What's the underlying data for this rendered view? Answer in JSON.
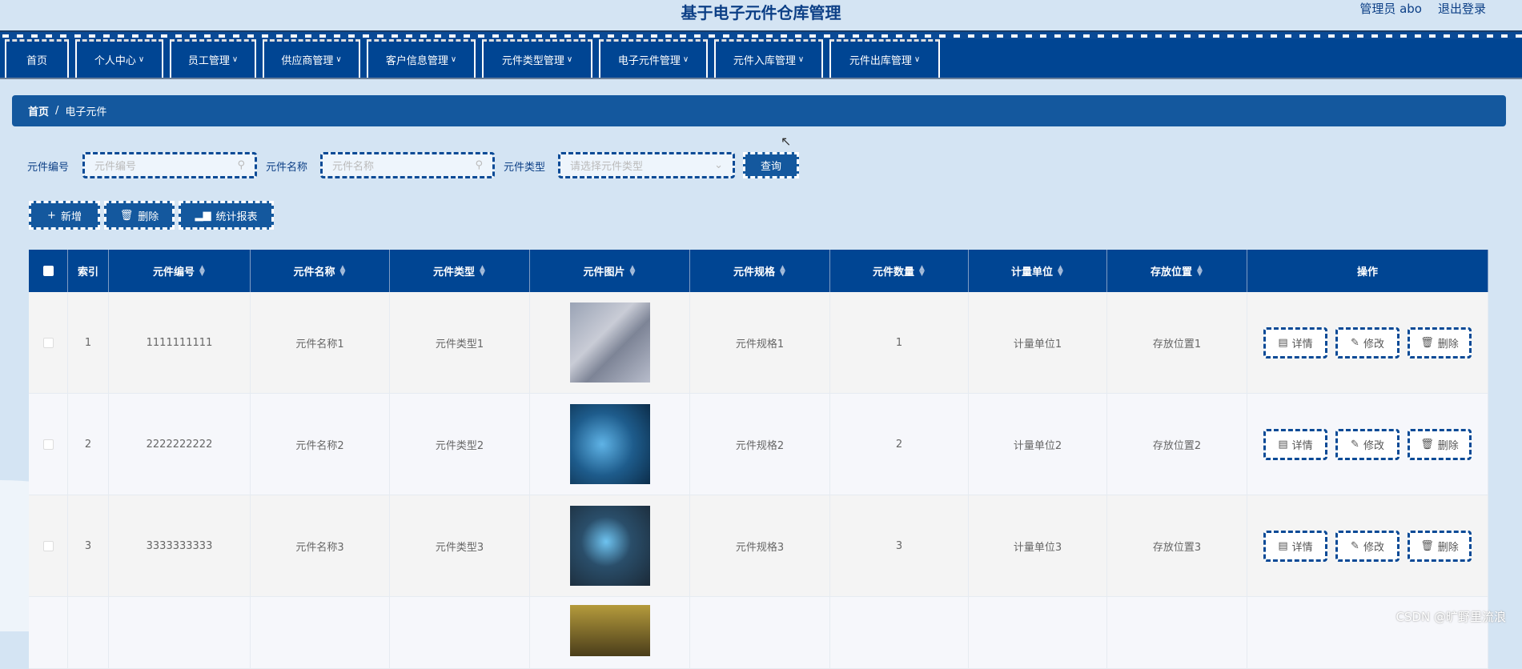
{
  "header": {
    "title": "基于电子元件仓库管理",
    "user": "管理员 abo",
    "logout": "退出登录"
  },
  "nav": [
    {
      "label": "首页",
      "dropdown": false
    },
    {
      "label": "个人中心",
      "dropdown": true
    },
    {
      "label": "员工管理",
      "dropdown": true
    },
    {
      "label": "供应商管理",
      "dropdown": true
    },
    {
      "label": "客户信息管理",
      "dropdown": true
    },
    {
      "label": "元件类型管理",
      "dropdown": true
    },
    {
      "label": "电子元件管理",
      "dropdown": true
    },
    {
      "label": "元件入库管理",
      "dropdown": true
    },
    {
      "label": "元件出库管理",
      "dropdown": true
    }
  ],
  "breadcrumb": {
    "home": "首页",
    "sep": "/",
    "current": "电子元件"
  },
  "search": {
    "code_label": "元件编号",
    "code_placeholder": "元件编号",
    "name_label": "元件名称",
    "name_placeholder": "元件名称",
    "type_label": "元件类型",
    "type_placeholder": "请选择元件类型",
    "query": "查询"
  },
  "toolbar": {
    "add": "新增",
    "delete": "删除",
    "report": "统计报表"
  },
  "table": {
    "columns": [
      "索引",
      "元件编号",
      "元件名称",
      "元件类型",
      "元件图片",
      "元件规格",
      "元件数量",
      "计量单位",
      "存放位置",
      "操作"
    ],
    "rows": [
      {
        "index": "1",
        "code": "1111111111",
        "name": "元件名称1",
        "type": "元件类型1",
        "spec": "元件规格1",
        "qty": "1",
        "unit": "计量单位1",
        "location": "存放位置1"
      },
      {
        "index": "2",
        "code": "2222222222",
        "name": "元件名称2",
        "type": "元件类型2",
        "spec": "元件规格2",
        "qty": "2",
        "unit": "计量单位2",
        "location": "存放位置2"
      },
      {
        "index": "3",
        "code": "3333333333",
        "name": "元件名称3",
        "type": "元件类型3",
        "spec": "元件规格3",
        "qty": "3",
        "unit": "计量单位3",
        "location": "存放位置3"
      },
      {
        "index": "",
        "code": "",
        "name": "",
        "type": "",
        "spec": "",
        "qty": "",
        "unit": "",
        "location": ""
      }
    ],
    "actions": {
      "detail": "详情",
      "edit": "修改",
      "delete": "删除"
    }
  },
  "watermark": "CSDN @旷野里流浪",
  "colors": {
    "primary": "#004593",
    "accent": "#14589e",
    "background": "#d4e4f3"
  }
}
